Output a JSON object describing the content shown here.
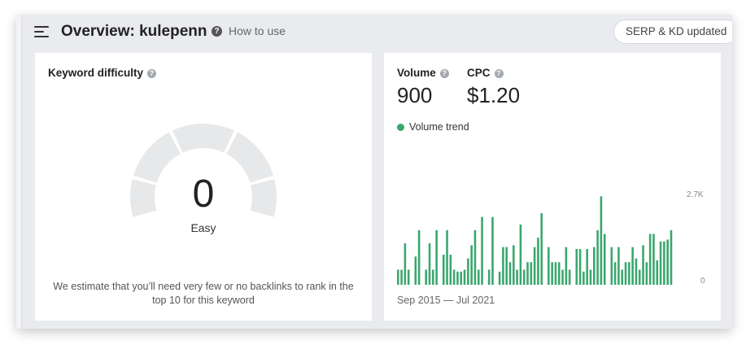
{
  "header": {
    "title": "Overview: kulepenn",
    "how_to_use": "How to use",
    "serp_button": "SERP & KD updated"
  },
  "keyword_difficulty": {
    "label": "Keyword difficulty",
    "value": "0",
    "level": "Easy",
    "gauge_fill_fraction": 0,
    "note": "We estimate that you’ll need very few or no backlinks to rank in the top 10 for this keyword"
  },
  "metrics": {
    "volume_label": "Volume",
    "volume_value": "900",
    "cpc_label": "CPC",
    "cpc_value": "$1.20"
  },
  "chart": {
    "legend": "Volume trend",
    "y_top_label": "2.7K",
    "y_bottom_label": "0",
    "date_range": "Sep 2015 — Jul 2021"
  },
  "chart_data": {
    "type": "bar",
    "series": [
      {
        "name": "Volume trend",
        "color": "#3aa76d",
        "values": [
          400,
          400,
          1100,
          400,
          0,
          750,
          1450,
          0,
          400,
          1100,
          400,
          1450,
          0,
          800,
          1450,
          800,
          400,
          350,
          350,
          400,
          700,
          1050,
          1450,
          400,
          1800,
          0,
          400,
          1800,
          0,
          350,
          1000,
          1000,
          600,
          1050,
          400,
          1600,
          400,
          600,
          600,
          1000,
          1250,
          1900,
          0,
          1000,
          600,
          600,
          600,
          400,
          1000,
          400,
          0,
          950,
          950,
          350,
          950,
          400,
          1000,
          1450,
          2350,
          1350,
          0,
          1000,
          600,
          1000,
          400,
          600,
          600,
          1000,
          700,
          400,
          1050,
          600,
          1350,
          1350,
          650,
          1150,
          1150,
          1200,
          1450
        ]
      }
    ],
    "ylim": [
      0,
      2700
    ],
    "yticks": [
      "0",
      "2.7K"
    ],
    "x_range": [
      "Sep 2015",
      "Jul 2021"
    ],
    "grid": false
  }
}
